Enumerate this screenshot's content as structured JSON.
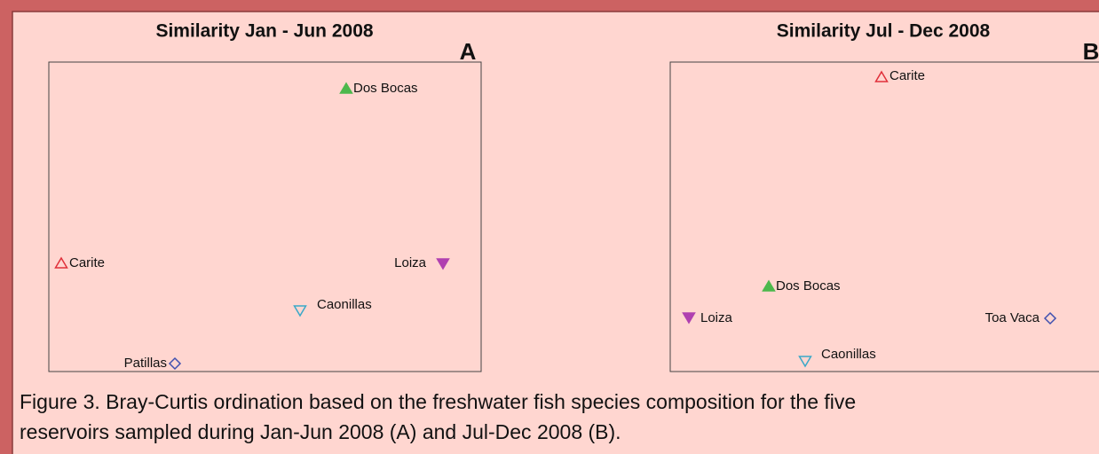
{
  "panels": [
    {
      "title": "Similarity Jan - Jun 2008",
      "letter": "A",
      "points": [
        {
          "label": "Dos Bocas"
        },
        {
          "label": "Carite"
        },
        {
          "label": "Loiza"
        },
        {
          "label": "Caonillas"
        },
        {
          "label": "Patillas"
        }
      ]
    },
    {
      "title": "Similarity Jul - Dec 2008",
      "letter": "B",
      "points": [
        {
          "label": "Carite"
        },
        {
          "label": "Dos Bocas"
        },
        {
          "label": "Loiza"
        },
        {
          "label": "Toa Vaca"
        },
        {
          "label": "Caonillas"
        }
      ]
    }
  ],
  "caption": [
    "Figure 3.  Bray-Curtis ordination based on the freshwater fish species composition for the five",
    "reservoirs sampled during Jan-Jun 2008 (A) and Jul-Dec 2008 (B)."
  ]
}
